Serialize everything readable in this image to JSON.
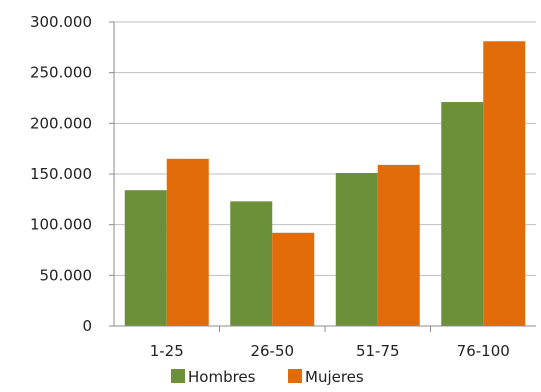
{
  "chart_data": {
    "type": "bar",
    "categories": [
      "1-25",
      "26-50",
      "51-75",
      "76-100"
    ],
    "series": [
      {
        "name": "Hombres",
        "color": "#6c8f3a",
        "values": [
          134000,
          123000,
          151000,
          221000
        ]
      },
      {
        "name": "Mujeres",
        "color": "#e36c0a",
        "values": [
          165000,
          92000,
          159000,
          281000
        ]
      }
    ],
    "y_ticks": [
      "0",
      "50.000",
      "100.000",
      "150.000",
      "200.000",
      "250.000",
      "300.000"
    ],
    "y_tick_values": [
      0,
      50000,
      100000,
      150000,
      200000,
      250000,
      300000
    ],
    "ylim": [
      0,
      300000
    ],
    "grid": true,
    "legend_position": "bottom"
  }
}
